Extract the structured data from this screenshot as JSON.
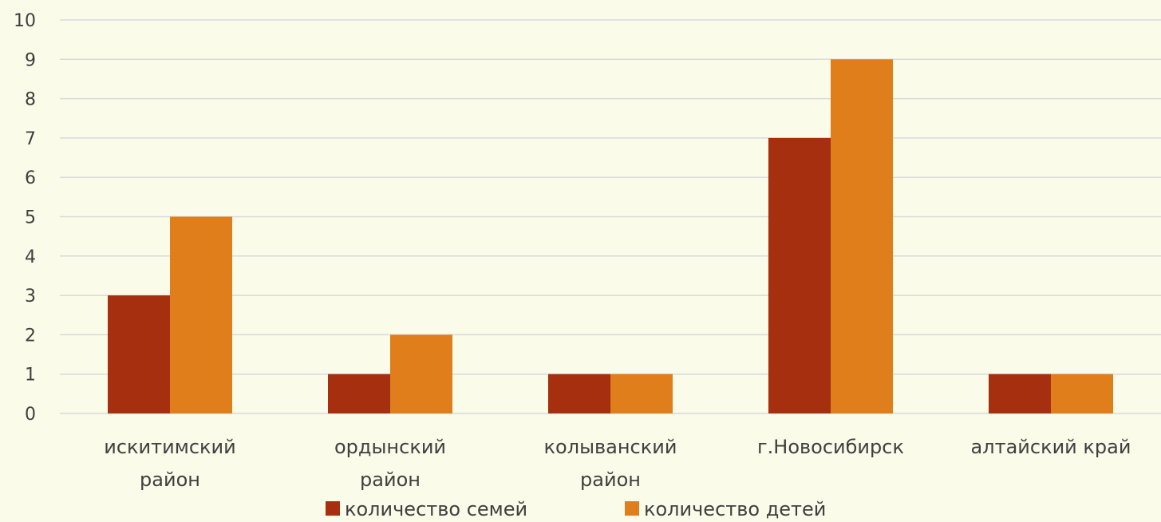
{
  "chart_data": {
    "type": "bar",
    "categories": [
      [
        "искитимский",
        "район"
      ],
      [
        "ордынский",
        "район"
      ],
      [
        "колыванский",
        "район"
      ],
      [
        "г.Новосибирск"
      ],
      [
        "алтайский край"
      ]
    ],
    "series": [
      {
        "name": "количество семей",
        "color": "#a52f0f",
        "values": [
          3,
          1,
          1,
          7,
          1
        ]
      },
      {
        "name": "количество детей",
        "color": "#df7e1a",
        "values": [
          5,
          2,
          1,
          9,
          1
        ]
      }
    ],
    "ylim": [
      0,
      10
    ],
    "yticks": [
      "0",
      "1",
      "2",
      "3",
      "4",
      "5",
      "6",
      "7",
      "8",
      "9",
      "10"
    ],
    "grid": true,
    "legend": "bottom"
  },
  "legend": {
    "families": "количество семей",
    "children": "количество детей"
  },
  "colors": {
    "background": "#fbfbe9",
    "grid": "#d9d9d9",
    "axis_text": "#404040"
  }
}
